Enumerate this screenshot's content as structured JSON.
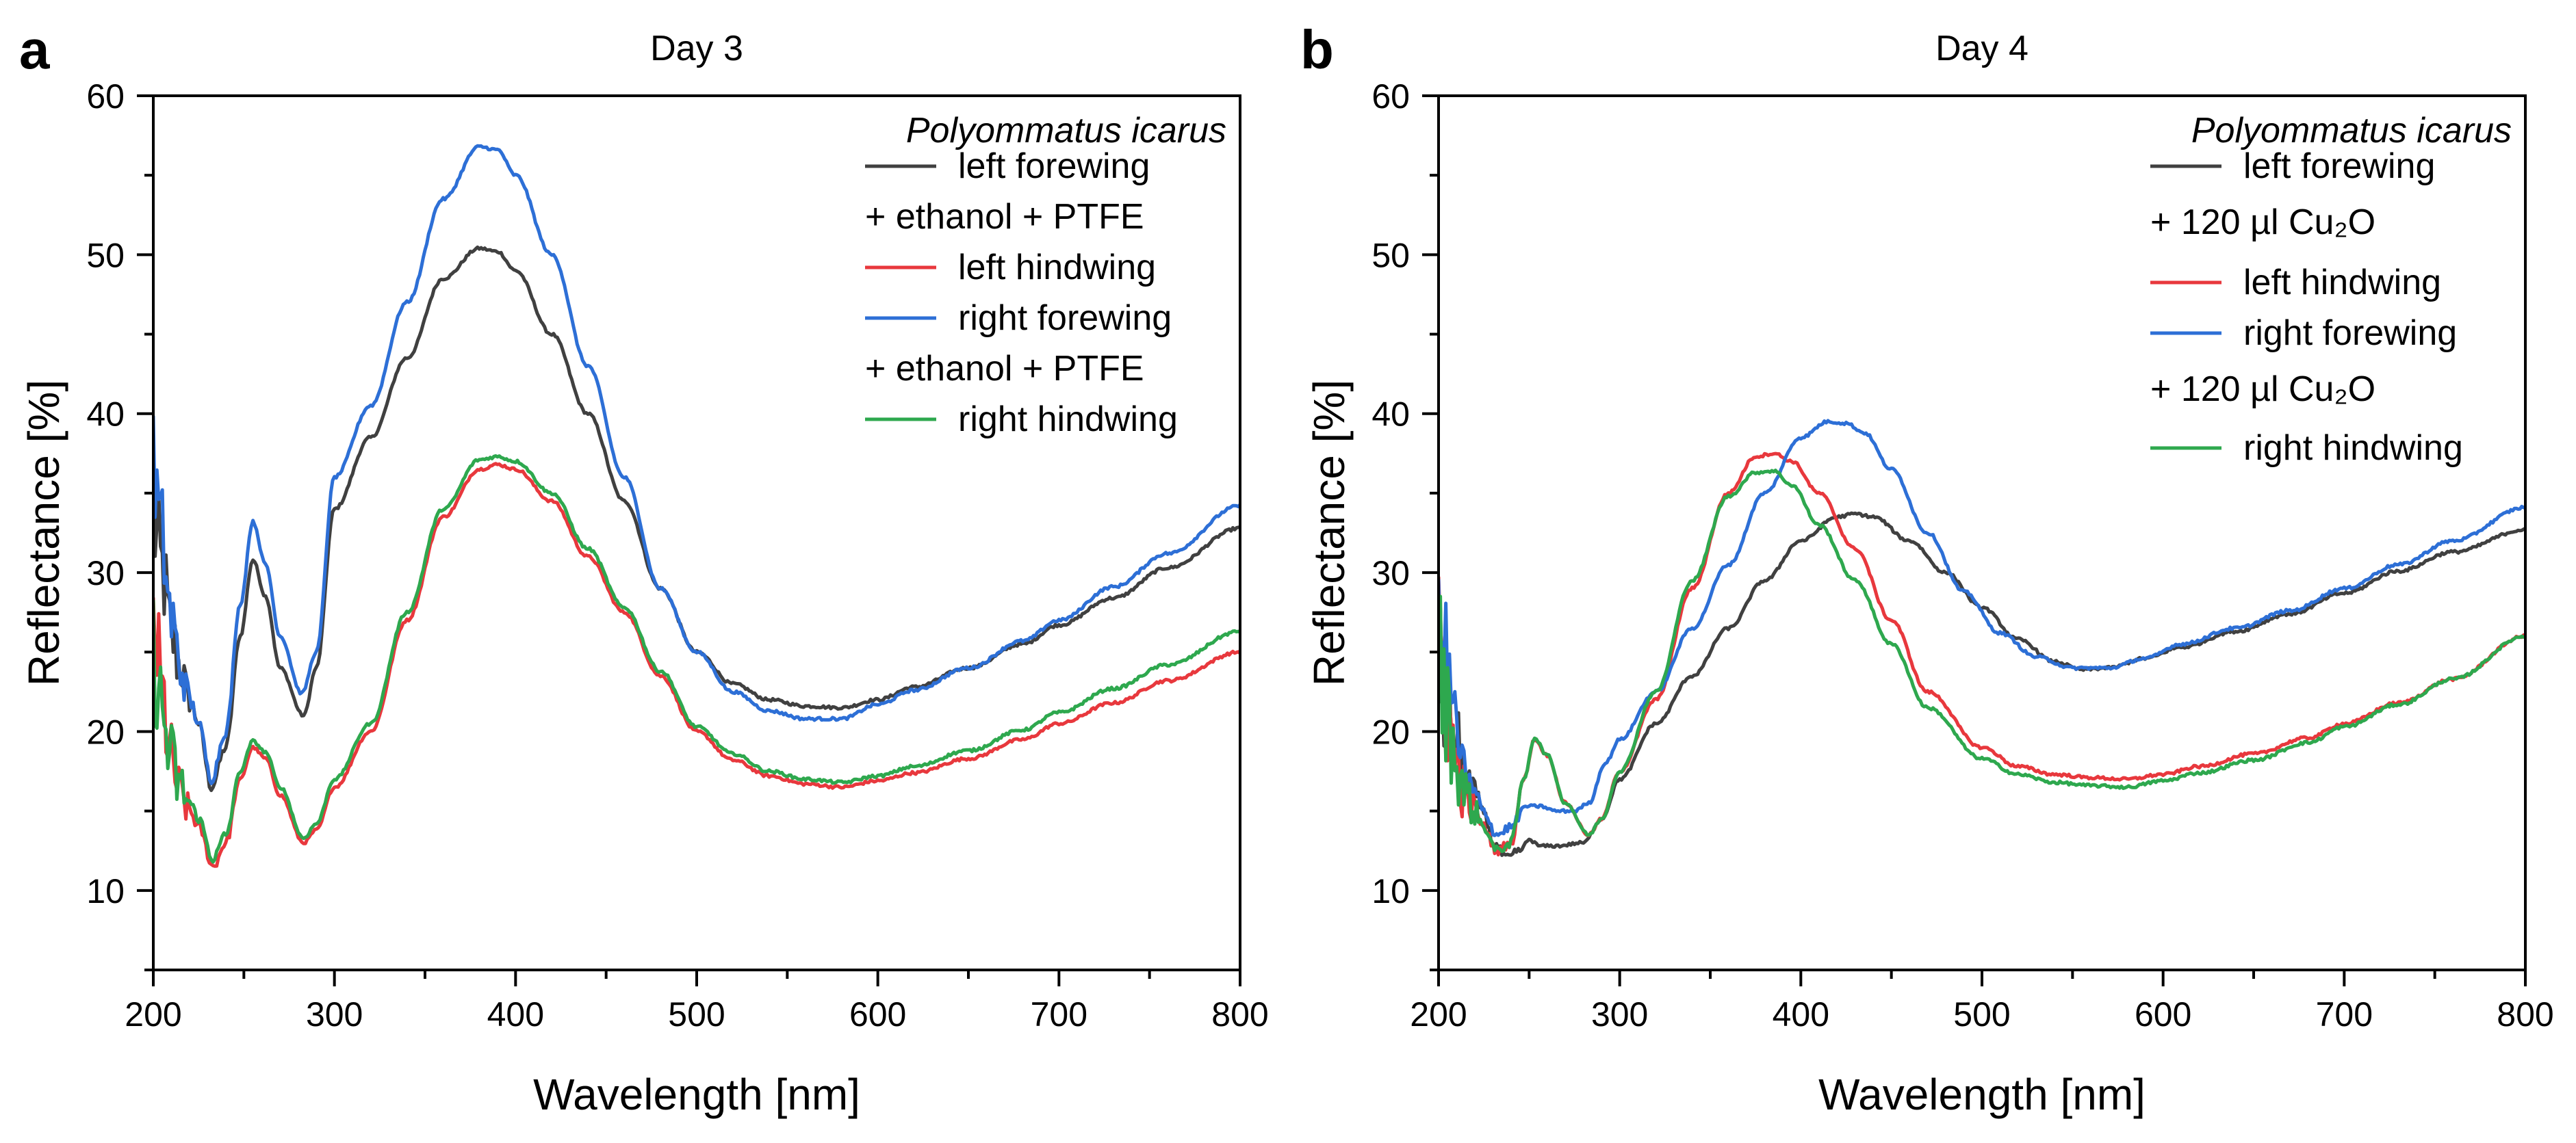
{
  "chart_data": [
    {
      "type": "line",
      "panel_label": "a",
      "title": "Day 3",
      "xlabel": "Wavelength [nm]",
      "ylabel": "Reflectance [%]",
      "xlim": [
        200,
        800
      ],
      "ylim": [
        5,
        60
      ],
      "xticks": [
        200,
        300,
        400,
        500,
        600,
        700,
        800
      ],
      "yticks": [
        10,
        20,
        30,
        40,
        50,
        60
      ],
      "x_tick_labels": [
        "200",
        "300",
        "400",
        "500",
        "600",
        "700",
        "800"
      ],
      "y_tick_labels": [
        "10",
        "20",
        "30",
        "40",
        "50",
        "60"
      ],
      "grid": false,
      "legend_position": "top-right",
      "legend_title": "Polyommatus icarus",
      "legend": [
        {
          "kind": "line",
          "series": 0,
          "text": "left forewing"
        },
        {
          "kind": "text",
          "text": "+ ethanol + PTFE"
        },
        {
          "kind": "line",
          "series": 1,
          "text": "left hindwing"
        },
        {
          "kind": "line",
          "series": 2,
          "text": "right forewing"
        },
        {
          "kind": "text",
          "text": "+ ethanol + PTFE"
        },
        {
          "kind": "line",
          "series": 3,
          "text": "right hindwing"
        }
      ],
      "series": [
        {
          "name": "left forewing",
          "color": "#404040",
          "x": [
            200,
            205,
            210,
            215,
            220,
            225,
            232,
            240,
            248,
            255,
            262,
            270,
            283,
            290,
            300,
            320,
            340,
            360,
            380,
            390,
            400,
            420,
            440,
            460,
            480,
            500,
            520,
            540,
            560,
            580,
            600,
            620,
            650,
            680,
            700,
            730,
            760,
            800
          ],
          "y": [
            33,
            30,
            26,
            24,
            22,
            20.5,
            16.5,
            19,
            26,
            30.8,
            28.5,
            24,
            21,
            24,
            34,
            38.5,
            43.5,
            48.5,
            50.4,
            50.2,
            49,
            45,
            40,
            34.5,
            29,
            25,
            23,
            22,
            21.6,
            21.5,
            22,
            22.8,
            24,
            25.5,
            26.7,
            28.4,
            30.3,
            32.8
          ]
        },
        {
          "name": "left hindwing",
          "color": "#e8383d",
          "x": [
            200,
            205,
            210,
            215,
            220,
            225,
            233,
            240,
            248,
            255,
            262,
            270,
            283,
            290,
            300,
            320,
            340,
            360,
            380,
            390,
            400,
            420,
            440,
            460,
            480,
            500,
            520,
            540,
            560,
            580,
            600,
            620,
            650,
            680,
            700,
            730,
            760,
            800
          ],
          "y": [
            27,
            22,
            18,
            16,
            15,
            14,
            11.5,
            13,
            17,
            19,
            18.3,
            16,
            13,
            13.8,
            16.5,
            20,
            27,
            33.5,
            36.5,
            36.8,
            36.5,
            34.5,
            31,
            27.5,
            23.5,
            20,
            18.2,
            17.2,
            16.7,
            16.5,
            16.9,
            17.4,
            18.3,
            19.5,
            20.5,
            21.8,
            23.2,
            25
          ]
        },
        {
          "name": "right forewing",
          "color": "#2d6fd6",
          "x": [
            200,
            205,
            210,
            215,
            220,
            225,
            232,
            240,
            248,
            255,
            262,
            270,
            282,
            290,
            300,
            320,
            340,
            360,
            380,
            390,
            400,
            420,
            440,
            460,
            480,
            500,
            520,
            540,
            560,
            580,
            600,
            620,
            650,
            680,
            700,
            730,
            760,
            800
          ],
          "y": [
            36,
            32,
            27,
            24,
            22,
            20.5,
            17,
            20,
            28,
            33.2,
            30.5,
            26,
            22.4,
            25,
            36,
            40.5,
            47,
            53.5,
            56.8,
            56.6,
            55,
            50,
            43,
            36,
            29,
            25,
            22.5,
            21.3,
            20.8,
            20.8,
            21.7,
            22.6,
            24,
            25.7,
            27,
            29.1,
            31.2,
            34.2
          ]
        },
        {
          "name": "right hindwing",
          "color": "#2ea84e",
          "x": [
            200,
            205,
            210,
            215,
            220,
            225,
            233,
            240,
            248,
            255,
            262,
            270,
            283,
            290,
            300,
            320,
            340,
            360,
            380,
            390,
            400,
            420,
            440,
            460,
            480,
            500,
            520,
            540,
            560,
            580,
            600,
            620,
            650,
            680,
            700,
            730,
            760,
            800
          ],
          "y": [
            25,
            21,
            18,
            16.5,
            15.5,
            14.5,
            12,
            13.5,
            17.5,
            19.4,
            18.7,
            16.5,
            13.3,
            14.2,
            17,
            20.5,
            27.5,
            34,
            37.1,
            37.3,
            37,
            35,
            31.5,
            27.8,
            23.8,
            20.3,
            18.6,
            17.5,
            17,
            16.8,
            17.2,
            17.8,
            18.8,
            20.1,
            21.2,
            22.7,
            24.2,
            26.3
          ]
        }
      ]
    },
    {
      "type": "line",
      "panel_label": "b",
      "title": "Day 4",
      "xlabel": "Wavelength [nm]",
      "ylabel": "Reflectance [%]",
      "xlim": [
        200,
        800
      ],
      "ylim": [
        5,
        60
      ],
      "xticks": [
        200,
        300,
        400,
        500,
        600,
        700,
        800
      ],
      "yticks": [
        10,
        20,
        30,
        40,
        50,
        60
      ],
      "x_tick_labels": [
        "200",
        "300",
        "400",
        "500",
        "600",
        "700",
        "800"
      ],
      "y_tick_labels": [
        "10",
        "20",
        "30",
        "40",
        "50",
        "60"
      ],
      "grid": false,
      "legend_position": "top-right",
      "legend_title": "Polyommatus icarus",
      "legend": [
        {
          "kind": "line",
          "series": 0,
          "text": "left forewing"
        },
        {
          "kind": "text",
          "text": "+ 120 µl Cu₂O"
        },
        {
          "kind": "line",
          "series": 1,
          "text": "left hindwing"
        },
        {
          "kind": "line",
          "series": 2,
          "text": "right forewing"
        },
        {
          "kind": "text",
          "text": "+ 120 µl Cu₂O"
        },
        {
          "kind": "line",
          "series": 3,
          "text": "right hindwing"
        }
      ],
      "series": [
        {
          "name": "left forewing",
          "color": "#404040",
          "x": [
            200,
            205,
            210,
            215,
            220,
            225,
            230,
            238,
            245,
            250,
            256,
            265,
            280,
            290,
            300,
            320,
            340,
            360,
            380,
            400,
            420,
            430,
            440,
            460,
            480,
            500,
            520,
            540,
            555,
            570,
            590,
            610,
            640,
            670,
            700,
            730,
            760,
            800
          ],
          "y": [
            24,
            21,
            19,
            17,
            16,
            15,
            13,
            12,
            12.5,
            13.2,
            12.8,
            12.8,
            13,
            14.5,
            17,
            20.5,
            23.5,
            26.5,
            29.5,
            32,
            33.5,
            33.7,
            33.5,
            32,
            30,
            27.8,
            25.8,
            24.4,
            23.9,
            24,
            24.6,
            25.3,
            26.3,
            27.4,
            28.7,
            30.1,
            31.3,
            32.7
          ]
        },
        {
          "name": "left hindwing",
          "color": "#e8383d",
          "x": [
            200,
            205,
            210,
            215,
            220,
            225,
            232,
            240,
            247,
            253,
            260,
            270,
            283,
            290,
            300,
            320,
            340,
            360,
            375,
            385,
            395,
            410,
            430,
            450,
            470,
            500,
            520,
            540,
            560,
            580,
            600,
            620,
            650,
            680,
            700,
            730,
            760,
            800
          ],
          "y": [
            26,
            21,
            18,
            16,
            15,
            14,
            12.5,
            13,
            17,
            19.5,
            18.5,
            15.5,
            13.5,
            14.5,
            17.5,
            22,
            29,
            35,
            37.3,
            37.5,
            37,
            35,
            31.5,
            27,
            22.5,
            19,
            17.8,
            17.3,
            17.1,
            17,
            17.3,
            17.8,
            18.6,
            19.6,
            20.5,
            21.8,
            23.3,
            26
          ]
        },
        {
          "name": "right forewing",
          "color": "#2d6fd6",
          "x": [
            200,
            205,
            210,
            215,
            220,
            225,
            232,
            240,
            248,
            256,
            265,
            275,
            283,
            292,
            300,
            320,
            340,
            360,
            380,
            400,
            415,
            425,
            435,
            450,
            470,
            490,
            510,
            530,
            550,
            570,
            590,
            610,
            640,
            670,
            700,
            730,
            760,
            800
          ],
          "y": [
            29,
            24,
            20,
            17,
            16,
            15,
            13.5,
            14,
            15.3,
            15.3,
            15,
            15,
            15.5,
            18,
            19.5,
            22.5,
            26.5,
            30.5,
            35,
            38.5,
            39.5,
            39.4,
            38.8,
            36.5,
            32.5,
            28.8,
            26.2,
            24.7,
            24,
            24,
            24.6,
            25.5,
            26.5,
            27.6,
            29,
            30.5,
            32,
            34.1
          ]
        },
        {
          "name": "right hindwing",
          "color": "#2ea84e",
          "x": [
            200,
            205,
            210,
            215,
            220,
            225,
            232,
            240,
            247,
            253,
            260,
            270,
            283,
            290,
            300,
            320,
            340,
            360,
            375,
            385,
            395,
            410,
            430,
            450,
            470,
            500,
            520,
            540,
            560,
            580,
            600,
            620,
            650,
            680,
            700,
            730,
            760,
            800
          ],
          "y": [
            25,
            21,
            18,
            16,
            15,
            14,
            12.5,
            13,
            17,
            19.6,
            18.5,
            15.5,
            13.5,
            14.5,
            17.5,
            22.5,
            29.5,
            34.8,
            36.3,
            36.4,
            35.5,
            33,
            29.5,
            25.5,
            21.5,
            18.3,
            17.3,
            16.8,
            16.6,
            16.5,
            16.9,
            17.4,
            18.2,
            19.3,
            20.3,
            21.7,
            23.3,
            26
          ]
        }
      ]
    }
  ]
}
